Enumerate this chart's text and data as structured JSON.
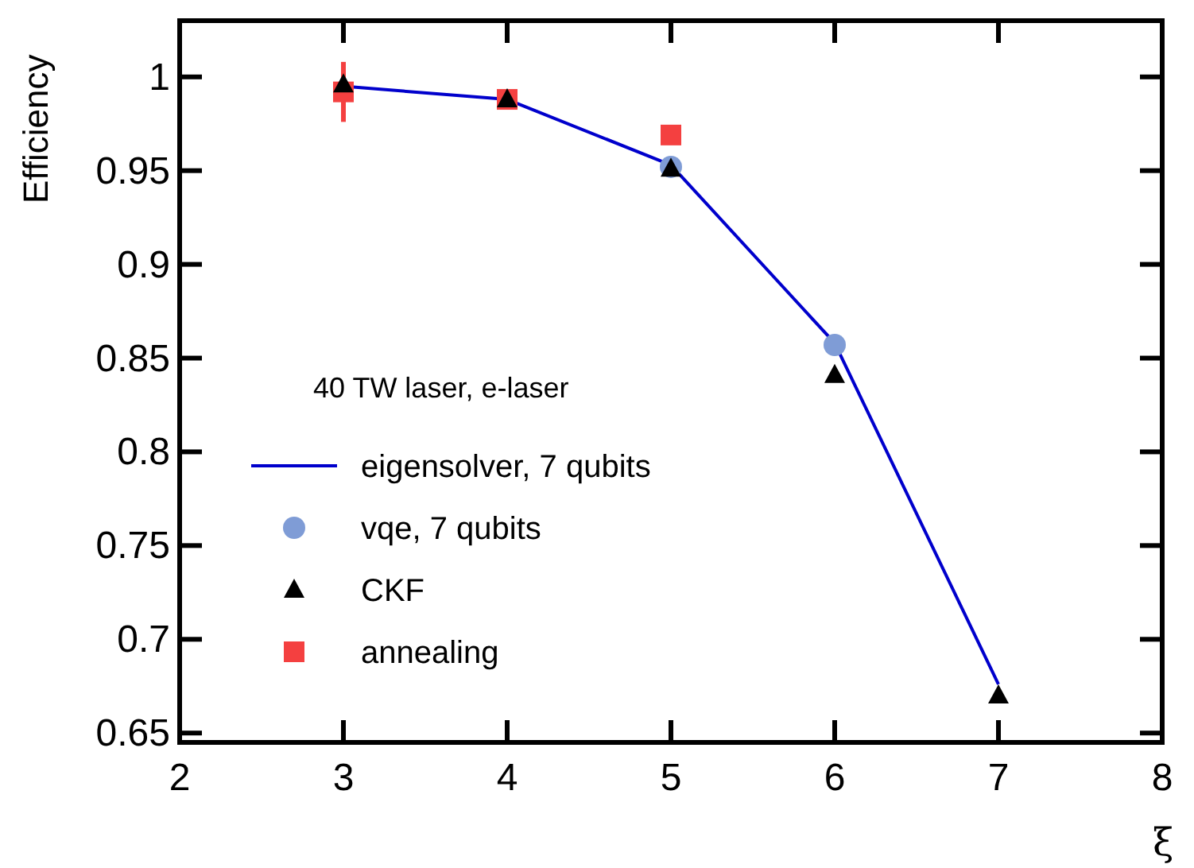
{
  "chart_data": {
    "type": "scatter",
    "ylabel": "Efficiency",
    "xlabel": "ξ",
    "legend_title": "40 TW laser, e-laser",
    "legend": "bottom left",
    "xlim": [
      2,
      8
    ],
    "xticks": [
      2,
      3,
      4,
      5,
      6,
      7,
      8
    ],
    "ylim": [
      0.645,
      1.03
    ],
    "yticks": [
      0.65,
      0.7,
      0.75,
      0.8,
      0.85,
      0.9,
      0.95,
      1
    ],
    "series": [
      {
        "name": "eigensolver, 7 qubits",
        "type": "line",
        "color": "#0000cc",
        "marker": "none",
        "x": [
          3,
          4,
          5,
          6,
          7
        ],
        "values": [
          0.995,
          0.988,
          0.953,
          0.858,
          0.676
        ]
      },
      {
        "name": "vqe, 7 qubits",
        "type": "scatter",
        "color": "#7f9cd6",
        "marker": "circle",
        "x": [
          5,
          6
        ],
        "values": [
          0.952,
          0.857
        ]
      },
      {
        "name": "CKF",
        "type": "scatter",
        "color": "#000000",
        "marker": "triangle",
        "x": [
          3,
          4,
          5,
          6,
          7
        ],
        "values": [
          0.996,
          0.988,
          0.951,
          0.841,
          0.67
        ]
      },
      {
        "name": "annealing",
        "type": "scatter",
        "color": "#f44040",
        "marker": "square",
        "x": [
          3,
          4,
          5
        ],
        "values": [
          0.992,
          0.988,
          0.969
        ],
        "errors": [
          0.016,
          null,
          null
        ]
      }
    ]
  }
}
